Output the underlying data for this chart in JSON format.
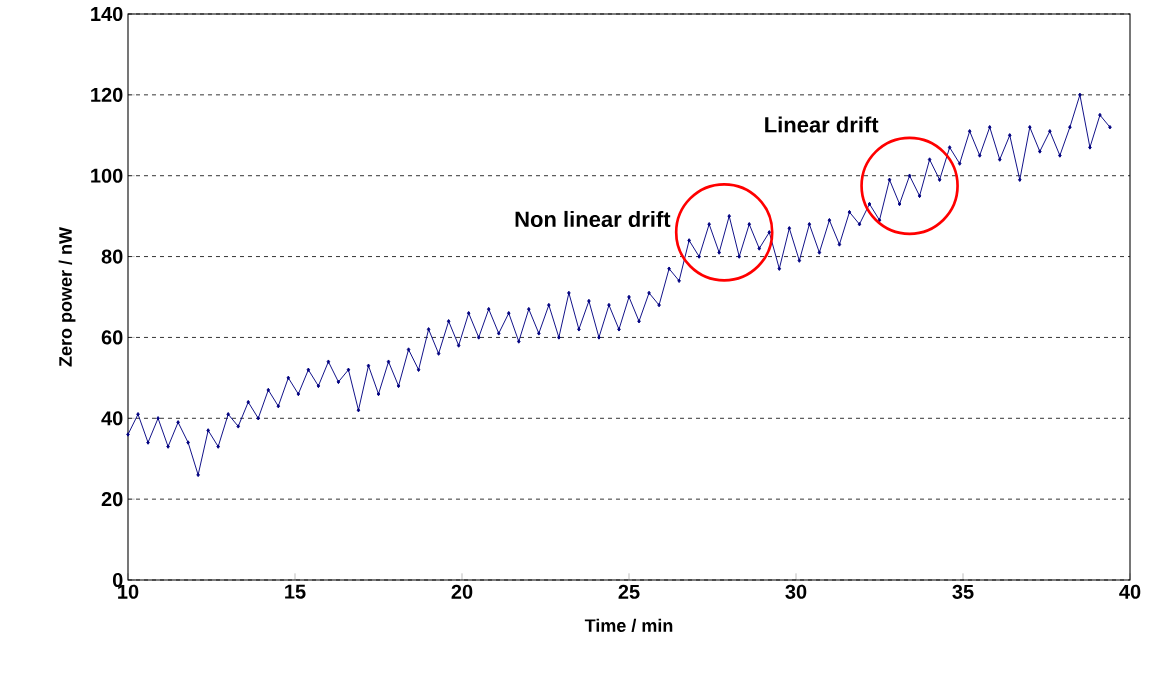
{
  "chart_data": {
    "type": "line",
    "xlabel": "Time / min",
    "ylabel": "Zero power / nW",
    "xlim": [
      10,
      40
    ],
    "ylim": [
      0,
      140
    ],
    "xticks": [
      10,
      15,
      20,
      25,
      30,
      35,
      40
    ],
    "yticks": [
      0,
      20,
      40,
      60,
      80,
      100,
      120,
      140
    ],
    "grid": "y",
    "marker": "diamond",
    "line_style": "solid",
    "annotations": [
      {
        "text": "Non linear drift",
        "x": 27.85,
        "y": 86
      },
      {
        "text": "Linear drift",
        "x": 33.4,
        "y": 97.5
      }
    ],
    "series": [
      {
        "color": "#000080",
        "x": [
          10.0,
          10.3,
          10.6,
          10.9,
          11.2,
          11.5,
          11.8,
          12.1,
          12.4,
          12.7,
          13.0,
          13.3,
          13.6,
          13.9,
          14.2,
          14.5,
          14.8,
          15.1,
          15.4,
          15.7,
          16.0,
          16.3,
          16.6,
          16.9,
          17.2,
          17.5,
          17.8,
          18.1,
          18.4,
          18.7,
          19.0,
          19.3,
          19.6,
          19.9,
          20.2,
          20.5,
          20.8,
          21.1,
          21.4,
          21.7,
          22.0,
          22.3,
          22.6,
          22.9,
          23.2,
          23.5,
          23.8,
          24.1,
          24.4,
          24.7,
          25.0,
          25.3,
          25.6,
          25.9,
          26.2,
          26.5,
          26.8,
          27.1,
          27.4,
          27.7,
          28.0,
          28.3,
          28.6,
          28.9,
          29.2,
          29.5,
          29.8,
          30.1,
          30.4,
          30.7,
          31.0,
          31.3,
          31.6,
          31.9,
          32.2,
          32.5,
          32.8,
          33.1,
          33.4,
          33.7,
          34.0,
          34.3,
          34.6,
          34.9,
          35.2,
          35.5,
          35.8,
          36.1,
          36.4,
          36.7,
          37.0,
          37.3,
          37.6,
          37.9,
          38.2,
          38.5,
          38.8,
          39.1,
          39.4
        ],
        "values": [
          36,
          41,
          34,
          40,
          33,
          39,
          34,
          26,
          37,
          33,
          41,
          38,
          44,
          40,
          47,
          43,
          50,
          46,
          52,
          48,
          54,
          49,
          52,
          42,
          53,
          46,
          54,
          48,
          57,
          52,
          62,
          56,
          64,
          58,
          66,
          60,
          67,
          61,
          66,
          59,
          67,
          61,
          68,
          60,
          71,
          62,
          69,
          60,
          68,
          62,
          70,
          64,
          71,
          68,
          77,
          74,
          84,
          80,
          88,
          81,
          90,
          80,
          88,
          82,
          86,
          77,
          87,
          79,
          88,
          81,
          89,
          83,
          91,
          88,
          93,
          89,
          99,
          93,
          100,
          95,
          104,
          99,
          107,
          103,
          111,
          105,
          112,
          104,
          110,
          99,
          112,
          106,
          111,
          105,
          112,
          120,
          107,
          115,
          112
        ]
      }
    ]
  }
}
